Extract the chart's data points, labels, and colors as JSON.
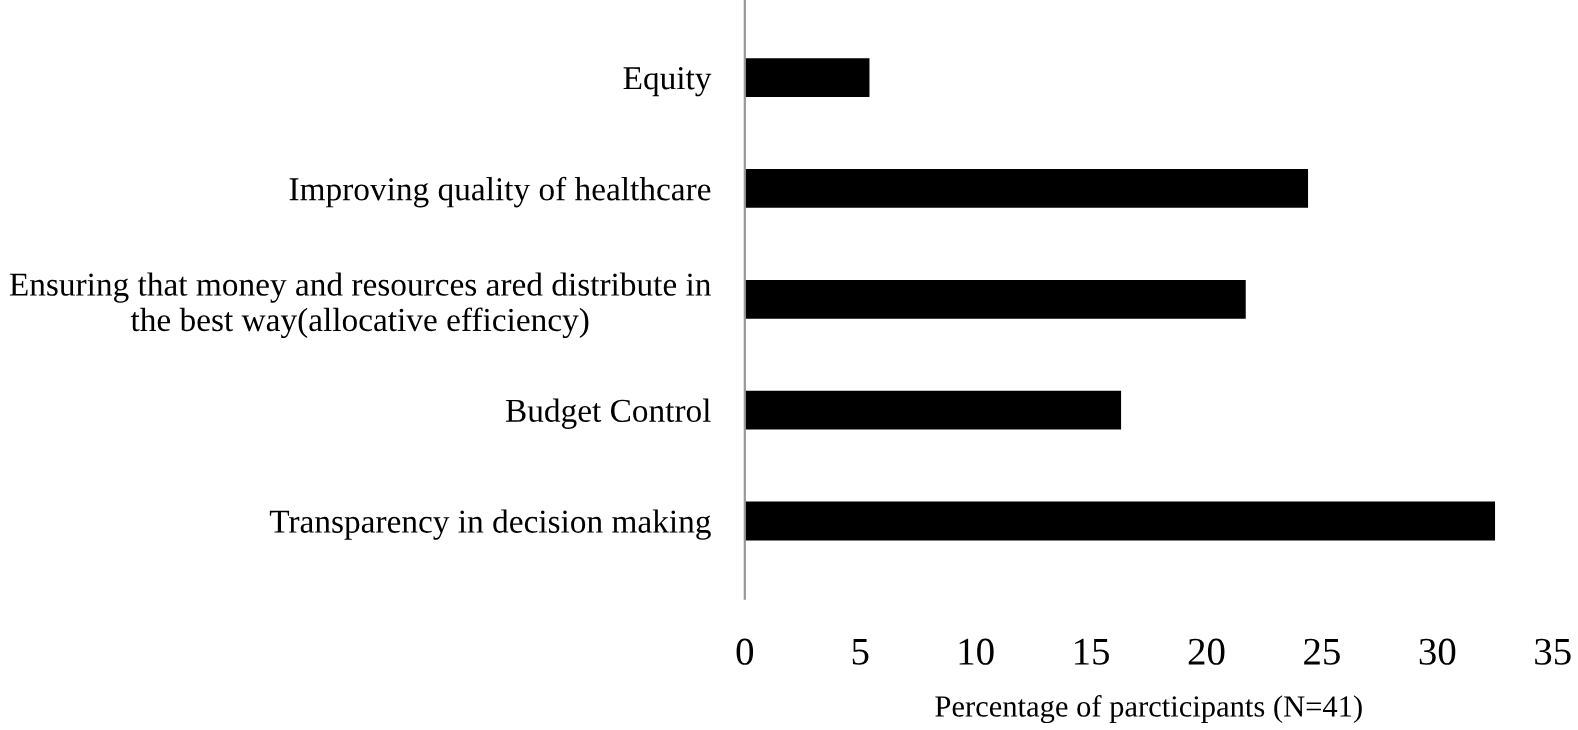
{
  "chart_data": {
    "type": "bar",
    "orientation": "horizontal",
    "xlabel": "Percentage of parcticipants (N=41)",
    "categories": [
      "Equity",
      "Improving quality of healthcare",
      "Ensuring that money and resources ared distribute in\nthe best way(allocative efficiency)",
      "Budget Control",
      "Transparency in decision making"
    ],
    "values": [
      5.4,
      24.4,
      21.7,
      16.3,
      32.5
    ],
    "color": "#000000",
    "xlim": [
      0,
      35
    ],
    "xticks": [
      0,
      5,
      10,
      15,
      20,
      25,
      30,
      35
    ],
    "grid": false,
    "legend": false
  }
}
